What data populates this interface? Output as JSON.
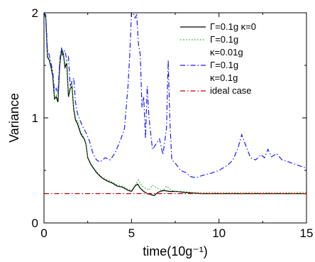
{
  "chart_data": {
    "type": "line",
    "title": "",
    "xlabel": "time(10g⁻¹)",
    "ylabel": "Variance",
    "xlim": [
      0,
      15
    ],
    "ylim": [
      0,
      2
    ],
    "x_ticks": [
      "0",
      "5",
      "10",
      "15"
    ],
    "y_ticks": [
      "0",
      "1",
      "2"
    ],
    "grid": false,
    "legend_position": "top-right",
    "series": [
      {
        "legend": [
          "Γ=0.1g  κ=0"
        ],
        "color": "#000000",
        "style": "solid",
        "x": [
          0,
          0.1,
          0.2,
          0.3,
          0.4,
          0.5,
          0.6,
          0.7,
          0.8,
          0.9,
          1.0,
          1.05,
          1.1,
          1.2,
          1.3,
          1.4,
          1.5,
          1.6,
          1.7,
          1.8,
          1.9,
          2.0,
          2.1,
          2.2,
          2.3,
          2.4,
          2.5,
          2.7,
          3.0,
          3.3,
          3.6,
          3.9,
          4.2,
          4.5,
          4.8,
          5.0,
          5.2,
          5.35,
          5.5,
          5.7,
          5.9,
          6.1,
          6.3,
          6.5,
          6.8,
          7.2,
          7.6,
          8.0,
          8.5,
          9.0,
          10.0,
          11.0,
          12.0,
          13.0,
          14.0,
          15.0
        ],
        "y": [
          2.0,
          1.95,
          1.58,
          1.55,
          1.48,
          1.4,
          1.18,
          1.2,
          1.15,
          1.5,
          1.65,
          1.6,
          1.62,
          1.48,
          1.52,
          1.2,
          1.28,
          1.3,
          1.08,
          0.98,
          0.95,
          0.9,
          0.85,
          0.82,
          0.8,
          0.75,
          0.62,
          0.55,
          0.48,
          0.43,
          0.4,
          0.38,
          0.35,
          0.34,
          0.31,
          0.3,
          0.35,
          0.37,
          0.33,
          0.3,
          0.28,
          0.27,
          0.26,
          0.29,
          0.31,
          0.3,
          0.3,
          0.29,
          0.285,
          0.28,
          0.28,
          0.28,
          0.28,
          0.28,
          0.28,
          0.28
        ]
      },
      {
        "legend": [
          "Γ=0.1g",
          "κ=0.01g"
        ],
        "color": "#22aa22",
        "style": "dotted",
        "x": [
          0,
          0.1,
          0.2,
          0.3,
          0.4,
          0.5,
          0.6,
          0.7,
          0.8,
          0.9,
          1.0,
          1.05,
          1.1,
          1.2,
          1.3,
          1.4,
          1.5,
          1.6,
          1.7,
          1.8,
          1.9,
          2.0,
          2.1,
          2.2,
          2.3,
          2.4,
          2.5,
          2.7,
          3.0,
          3.3,
          3.6,
          3.9,
          4.2,
          4.5,
          4.8,
          5.0,
          5.2,
          5.4,
          5.6,
          5.8,
          6.0,
          6.2,
          6.5,
          6.8,
          7.0,
          7.3,
          7.6,
          8.0,
          8.5,
          9.0,
          10.0,
          11.0,
          12.0,
          13.0,
          14.0,
          15.0
        ],
        "y": [
          2.0,
          1.96,
          1.6,
          1.56,
          1.5,
          1.42,
          1.2,
          1.22,
          1.18,
          1.52,
          1.66,
          1.6,
          1.63,
          1.5,
          1.54,
          1.22,
          1.3,
          1.32,
          1.1,
          1.0,
          0.97,
          0.92,
          0.87,
          0.84,
          0.81,
          0.76,
          0.63,
          0.56,
          0.49,
          0.44,
          0.41,
          0.39,
          0.36,
          0.35,
          0.32,
          0.31,
          0.36,
          0.41,
          0.35,
          0.33,
          0.31,
          0.36,
          0.33,
          0.3,
          0.35,
          0.31,
          0.3,
          0.3,
          0.29,
          0.29,
          0.29,
          0.29,
          0.29,
          0.29,
          0.29,
          0.29
        ]
      },
      {
        "legend": [
          "Γ=0.1g",
          "κ=0.1g"
        ],
        "color": "#1a1aff",
        "style": "dashdot",
        "x": [
          0,
          0.1,
          0.2,
          0.3,
          0.4,
          0.5,
          0.6,
          0.7,
          0.8,
          0.9,
          1.0,
          1.1,
          1.2,
          1.3,
          1.4,
          1.5,
          1.6,
          1.7,
          1.8,
          1.9,
          2.0,
          2.2,
          2.4,
          2.6,
          2.8,
          3.0,
          3.2,
          3.5,
          3.8,
          4.1,
          4.4,
          4.6,
          4.8,
          4.9,
          5.0,
          5.1,
          5.2,
          5.3,
          5.4,
          5.5,
          5.6,
          5.7,
          5.8,
          5.9,
          6.0,
          6.2,
          6.4,
          6.6,
          6.8,
          7.0,
          7.1,
          7.2,
          7.3,
          7.5,
          7.8,
          8.1,
          8.4,
          8.7,
          9.0,
          9.5,
          10.0,
          10.5,
          10.8,
          11.1,
          11.3,
          11.5,
          11.8,
          12.1,
          12.4,
          12.6,
          12.8,
          13.0,
          13.3,
          13.6,
          14.0,
          14.5,
          15.0
        ],
        "y": [
          2.0,
          1.98,
          1.65,
          1.6,
          1.52,
          1.45,
          1.25,
          1.28,
          1.23,
          1.55,
          1.66,
          1.62,
          1.64,
          1.55,
          1.58,
          1.3,
          1.35,
          1.38,
          1.15,
          1.05,
          1.0,
          0.92,
          0.86,
          0.78,
          0.66,
          0.6,
          0.58,
          0.62,
          0.6,
          0.68,
          0.8,
          0.9,
          1.3,
          1.6,
          2.0,
          2.0,
          1.95,
          1.98,
          1.7,
          1.6,
          1.1,
          1.2,
          0.8,
          1.3,
          1.0,
          0.7,
          0.75,
          0.8,
          0.65,
          0.9,
          1.55,
          0.95,
          0.6,
          0.57,
          0.5,
          0.48,
          0.44,
          0.43,
          0.45,
          0.47,
          0.5,
          0.55,
          0.6,
          0.72,
          0.84,
          0.75,
          0.62,
          0.6,
          0.65,
          0.62,
          0.7,
          0.63,
          0.66,
          0.6,
          0.58,
          0.55,
          0.52
        ]
      },
      {
        "legend": [
          "ideal case"
        ],
        "color": "#cc0000",
        "style": "dashdot",
        "x": [
          0,
          15
        ],
        "y": [
          0.28,
          0.28
        ]
      }
    ]
  }
}
